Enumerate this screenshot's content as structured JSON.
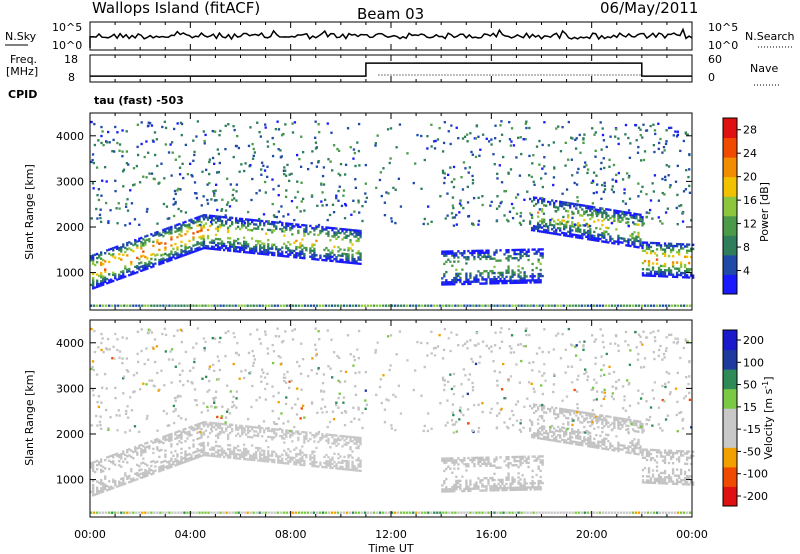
{
  "header": {
    "station": "Wallops Island (fitACF)",
    "beam": "Beam 03",
    "date": "06/May/2011"
  },
  "noise_panel": {
    "left_label": "N.Sky",
    "right_label": "N.Search",
    "left_ticks": [
      "10^5",
      "10^0"
    ],
    "right_ticks": [
      "10^5",
      "10^0"
    ]
  },
  "freq_panel": {
    "left_label_1": "Freq.",
    "left_label_2": "[MHz]",
    "left_ticks": [
      "18",
      "8"
    ],
    "right_label": "Nave",
    "right_ticks": [
      "60",
      "0"
    ],
    "cpid_label": "CPID",
    "cpid_value": "tau (fast) -503"
  },
  "time_axis": {
    "label": "Time UT",
    "ticks": [
      "00:00",
      "04:00",
      "08:00",
      "12:00",
      "16:00",
      "20:00",
      "00:00"
    ]
  },
  "colors": {
    "power_scale": [
      "#1a1aff",
      "#1f4aa8",
      "#2e7d5b",
      "#4a9a4a",
      "#8cc63f",
      "#f2c200",
      "#f28c00",
      "#f04a00",
      "#e01010"
    ],
    "velocity_scale": [
      "#e01010",
      "#f04a00",
      "#f2a000",
      "#c8c8c8",
      "#c8c8c8",
      "#7ac943",
      "#2e8b57",
      "#1f3a9e",
      "#1a1acc"
    ],
    "ground_scatter": "#c3c3c3"
  },
  "chart_data": [
    {
      "type": "heatmap",
      "name": "Power",
      "ylabel": "Slant Range [km]",
      "xlabel": "Time UT",
      "xlim_hours": [
        0,
        24
      ],
      "ylim_km": [
        180,
        4500
      ],
      "yticks": [
        1000,
        2000,
        3000,
        4000
      ],
      "colorbar_label": "Power [dB]",
      "colorbar_ticks": [
        4,
        8,
        12,
        16,
        20,
        24,
        28
      ],
      "colorbar_range": [
        0,
        30
      ],
      "echo_bands": [
        {
          "start_h": 0.0,
          "end_h": 4.5,
          "range_start_km": 1000,
          "range_end_km": 1900,
          "peak_db": 26
        },
        {
          "start_h": 4.5,
          "end_h": 10.8,
          "range_start_km": 1900,
          "range_end_km": 1550,
          "peak_db": 20
        },
        {
          "start_h": 14.0,
          "end_h": 18.0,
          "range_start_km": 1100,
          "range_end_km": 1150,
          "peak_db": 14
        },
        {
          "start_h": 17.5,
          "end_h": 22.0,
          "range_start_km": 2300,
          "range_end_km": 1900,
          "peak_db": 20
        },
        {
          "start_h": 22.0,
          "end_h": 24.0,
          "range_start_km": 1300,
          "range_end_km": 1250,
          "peak_db": 24
        }
      ]
    },
    {
      "type": "heatmap",
      "name": "Velocity",
      "ylabel": "Slant Range [km]",
      "xlabel": "Time UT",
      "xlim_hours": [
        0,
        24
      ],
      "ylim_km": [
        180,
        4500
      ],
      "yticks": [
        1000,
        2000,
        3000,
        4000
      ],
      "colorbar_label": "Velocity [m s-1]",
      "colorbar_ticks": [
        200,
        100,
        50,
        15,
        -15,
        -50,
        -100,
        -200
      ],
      "colorbar_range": [
        -250,
        250
      ]
    }
  ],
  "freq_series": {
    "freq_mhz_segments": [
      {
        "start_h": 0,
        "end_h": 11.0,
        "value": 10.2
      },
      {
        "start_h": 11.0,
        "end_h": 22.0,
        "value": 15.0
      },
      {
        "start_h": 22.0,
        "end_h": 24.0,
        "value": 10.2
      }
    ]
  }
}
